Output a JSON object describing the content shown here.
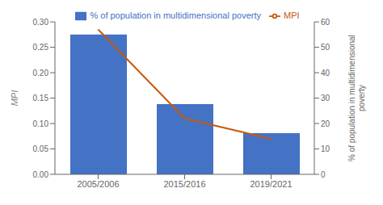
{
  "chart_data": {
    "type": "bar",
    "categories": [
      "2005/2006",
      "2015/2016",
      "2019/2021"
    ],
    "series": [
      {
        "name": "% of population in multidimensional poverty",
        "type": "bar",
        "color": "#4472C4",
        "values": [
          0.275,
          0.138,
          0.081
        ]
      },
      {
        "name": "MPI",
        "type": "line",
        "color": "#C55A11",
        "values": [
          57,
          22,
          14
        ],
        "axis": "y2"
      }
    ],
    "ylabel": "MPI",
    "y2label": "% of population in multidimensional\npoverty",
    "ylim": [
      0,
      0.3
    ],
    "yticks": [
      {
        "value": 0.0,
        "label": "0.00"
      },
      0.05,
      {
        "value": 0.1,
        "label": "0.10"
      },
      0.15,
      {
        "value": 0.2,
        "label": "0.20"
      },
      0.25,
      {
        "value": 0.3,
        "label": "0.30"
      }
    ],
    "y2lim": [
      0,
      60
    ],
    "y2ticks": [
      0,
      10,
      20,
      30,
      40,
      50,
      60
    ],
    "grid": false,
    "legend": "top"
  }
}
